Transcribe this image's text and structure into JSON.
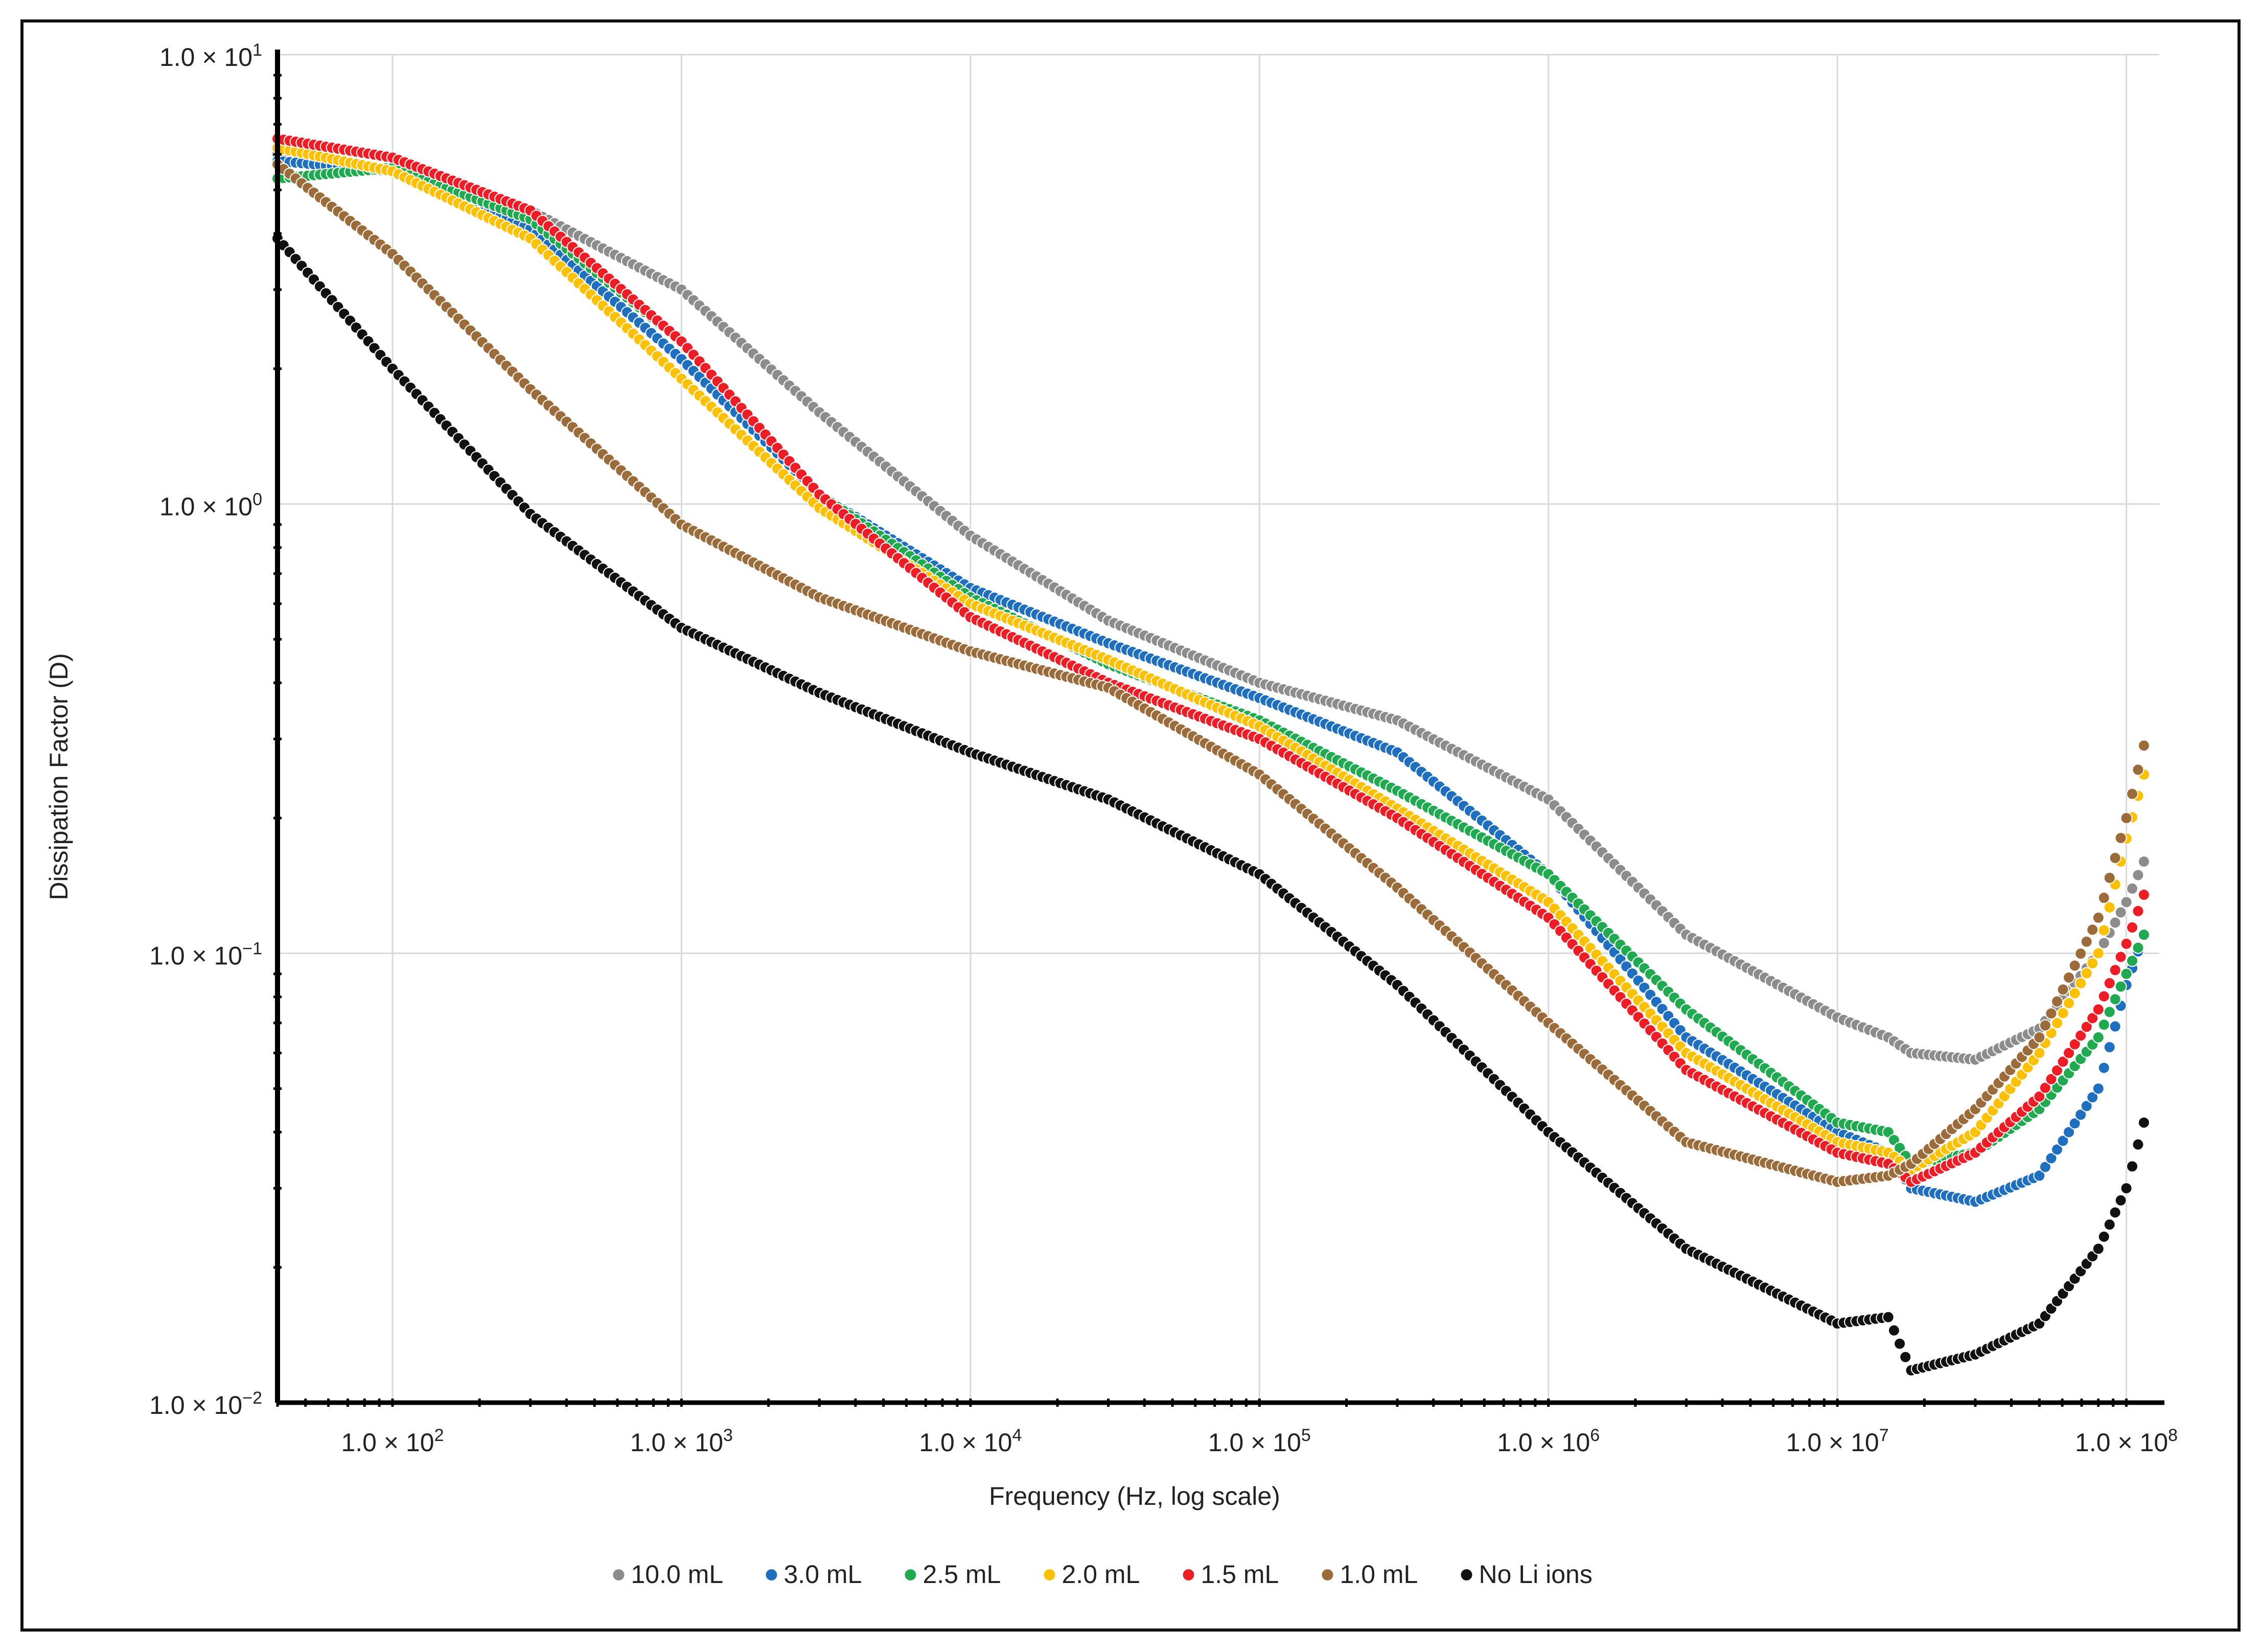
{
  "chart_data": {
    "type": "scatter",
    "title": "",
    "xlabel": "Frequency (Hz, log scale)",
    "ylabel": "Dissipation Factor (D)",
    "x_scale": "log",
    "y_scale": "log",
    "xlim": [
      40,
      130000000
    ],
    "ylim": [
      0.01,
      10
    ],
    "grid": true,
    "legend_position": "bottom",
    "x_tick_labels": [
      {
        "value": 100,
        "mantissa": "1.0",
        "exponent": "2"
      },
      {
        "value": 1000,
        "mantissa": "1.0",
        "exponent": "3"
      },
      {
        "value": 10000,
        "mantissa": "1.0",
        "exponent": "4"
      },
      {
        "value": 100000,
        "mantissa": "1.0",
        "exponent": "5"
      },
      {
        "value": 1000000,
        "mantissa": "1.0",
        "exponent": "6"
      },
      {
        "value": 10000000,
        "mantissa": "1.0",
        "exponent": "7"
      },
      {
        "value": 100000000,
        "mantissa": "1.0",
        "exponent": "8"
      }
    ],
    "y_tick_labels": [
      {
        "value": 10,
        "mantissa": "1.0",
        "exponent": "1"
      },
      {
        "value": 1,
        "mantissa": "1.0",
        "exponent": "0"
      },
      {
        "value": 0.1,
        "mantissa": "1.0",
        "exponent": "−1"
      },
      {
        "value": 0.01,
        "mantissa": "1.0",
        "exponent": "−2"
      }
    ],
    "series": [
      {
        "name": "10.0 mL",
        "color": "#8c8c8c",
        "points": [
          [
            40,
            6.0
          ],
          [
            100,
            5.5
          ],
          [
            300,
            4.5
          ],
          [
            1000,
            3.0
          ],
          [
            3000,
            1.6
          ],
          [
            10000,
            0.85
          ],
          [
            30000,
            0.55
          ],
          [
            100000,
            0.4
          ],
          [
            300000,
            0.33
          ],
          [
            1000000,
            0.22
          ],
          [
            3000000,
            0.11
          ],
          [
            10000000,
            0.072
          ],
          [
            15000000,
            0.065
          ],
          [
            18000000,
            0.06
          ],
          [
            30000000,
            0.058
          ],
          [
            50000000,
            0.068
          ],
          [
            80000000,
            0.1
          ],
          [
            100000000,
            0.13
          ],
          [
            115000000,
            0.16
          ]
        ]
      },
      {
        "name": "3.0 mL",
        "color": "#1f6fc0",
        "points": [
          [
            40,
            5.8
          ],
          [
            100,
            5.5
          ],
          [
            300,
            4.1
          ],
          [
            1000,
            2.1
          ],
          [
            3000,
            1.05
          ],
          [
            10000,
            0.65
          ],
          [
            30000,
            0.49
          ],
          [
            100000,
            0.37
          ],
          [
            300000,
            0.28
          ],
          [
            1000000,
            0.15
          ],
          [
            3000000,
            0.065
          ],
          [
            10000000,
            0.04
          ],
          [
            15000000,
            0.036
          ],
          [
            18000000,
            0.03
          ],
          [
            30000000,
            0.028
          ],
          [
            50000000,
            0.032
          ],
          [
            80000000,
            0.05
          ],
          [
            100000000,
            0.085
          ],
          [
            115000000,
            0.11
          ]
        ]
      },
      {
        "name": "2.5 mL",
        "color": "#1faa50",
        "points": [
          [
            40,
            5.3
          ],
          [
            100,
            5.6
          ],
          [
            300,
            4.3
          ],
          [
            1000,
            2.3
          ],
          [
            3000,
            1.05
          ],
          [
            10000,
            0.62
          ],
          [
            30000,
            0.44
          ],
          [
            100000,
            0.33
          ],
          [
            300000,
            0.23
          ],
          [
            1000000,
            0.15
          ],
          [
            3000000,
            0.075
          ],
          [
            10000000,
            0.042
          ],
          [
            15000000,
            0.04
          ],
          [
            18000000,
            0.034
          ],
          [
            30000000,
            0.036
          ],
          [
            50000000,
            0.045
          ],
          [
            80000000,
            0.065
          ],
          [
            100000000,
            0.09
          ],
          [
            115000000,
            0.11
          ]
        ]
      },
      {
        "name": "2.0 mL",
        "color": "#ffc000",
        "points": [
          [
            40,
            6.2
          ],
          [
            100,
            5.5
          ],
          [
            300,
            3.9
          ],
          [
            1000,
            1.9
          ],
          [
            3000,
            0.98
          ],
          [
            10000,
            0.6
          ],
          [
            30000,
            0.45
          ],
          [
            100000,
            0.32
          ],
          [
            300000,
            0.21
          ],
          [
            1000000,
            0.13
          ],
          [
            3000000,
            0.06
          ],
          [
            10000000,
            0.038
          ],
          [
            15000000,
            0.036
          ],
          [
            18000000,
            0.033
          ],
          [
            30000000,
            0.04
          ],
          [
            50000000,
            0.06
          ],
          [
            80000000,
            0.1
          ],
          [
            100000000,
            0.18
          ],
          [
            115000000,
            0.25
          ]
        ]
      },
      {
        "name": "1.5 mL",
        "color": "#ee1c25",
        "points": [
          [
            40,
            6.5
          ],
          [
            100,
            5.9
          ],
          [
            300,
            4.5
          ],
          [
            1000,
            2.3
          ],
          [
            3000,
            1.05
          ],
          [
            10000,
            0.56
          ],
          [
            30000,
            0.4
          ],
          [
            100000,
            0.3
          ],
          [
            300000,
            0.2
          ],
          [
            1000000,
            0.12
          ],
          [
            3000000,
            0.055
          ],
          [
            10000000,
            0.036
          ],
          [
            15000000,
            0.034
          ],
          [
            18000000,
            0.031
          ],
          [
            30000000,
            0.036
          ],
          [
            50000000,
            0.048
          ],
          [
            80000000,
            0.075
          ],
          [
            100000000,
            0.105
          ],
          [
            115000000,
            0.135
          ]
        ]
      },
      {
        "name": "1.0 mL",
        "color": "#9c6b3a",
        "points": [
          [
            40,
            5.7
          ],
          [
            100,
            3.6
          ],
          [
            300,
            1.8
          ],
          [
            1000,
            0.9
          ],
          [
            3000,
            0.62
          ],
          [
            10000,
            0.47
          ],
          [
            30000,
            0.39
          ],
          [
            100000,
            0.25
          ],
          [
            300000,
            0.14
          ],
          [
            1000000,
            0.07
          ],
          [
            3000000,
            0.038
          ],
          [
            10000000,
            0.031
          ],
          [
            15000000,
            0.032
          ],
          [
            18000000,
            0.034
          ],
          [
            30000000,
            0.045
          ],
          [
            50000000,
            0.065
          ],
          [
            80000000,
            0.12
          ],
          [
            100000000,
            0.2
          ],
          [
            115000000,
            0.29
          ]
        ]
      },
      {
        "name": "No Li ions",
        "color": "#111111",
        "points": [
          [
            40,
            3.9
          ],
          [
            100,
            2.0
          ],
          [
            300,
            0.95
          ],
          [
            1000,
            0.53
          ],
          [
            3000,
            0.38
          ],
          [
            10000,
            0.28
          ],
          [
            30000,
            0.22
          ],
          [
            100000,
            0.15
          ],
          [
            300000,
            0.085
          ],
          [
            1000000,
            0.04
          ],
          [
            3000000,
            0.022
          ],
          [
            10000000,
            0.015
          ],
          [
            15000000,
            0.0155
          ],
          [
            18000000,
            0.0118
          ],
          [
            30000000,
            0.0128
          ],
          [
            50000000,
            0.015
          ],
          [
            80000000,
            0.022
          ],
          [
            100000000,
            0.03
          ],
          [
            115000000,
            0.042
          ]
        ]
      }
    ]
  }
}
